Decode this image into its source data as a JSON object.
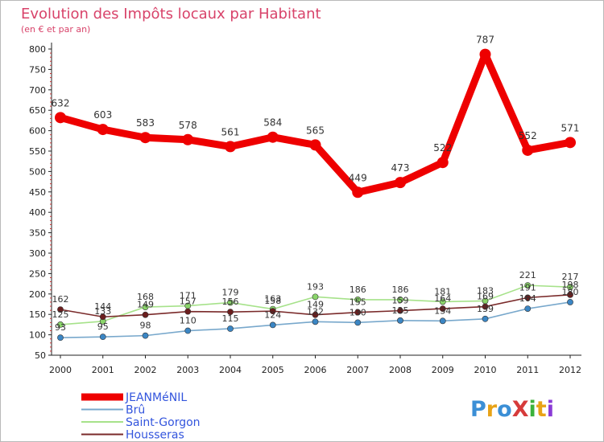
{
  "chart_data": {
    "type": "line",
    "title": "Evolution des Impôts locaux par Habitant",
    "subtitle": "(en € et par an)",
    "xlabel": "",
    "ylabel": "",
    "ylim": [
      50,
      800
    ],
    "yticks": [
      50,
      100,
      150,
      200,
      250,
      300,
      350,
      400,
      450,
      500,
      550,
      600,
      650,
      700,
      750,
      800
    ],
    "categories": [
      "2000",
      "2001",
      "2002",
      "2003",
      "2004",
      "2005",
      "2006",
      "2007",
      "2008",
      "2009",
      "2010",
      "2011",
      "2012"
    ],
    "grid": false,
    "legend_position": "bottom-left",
    "series": [
      {
        "name": "JEANMéNIL",
        "color": "#ee0000",
        "marker": "#ee0000",
        "emphasis": "bold",
        "values": [
          632,
          603,
          583,
          578,
          561,
          584,
          565,
          449,
          473,
          522,
          787,
          552,
          571
        ],
        "labels": [
          "632",
          "603",
          "583",
          "578",
          "561",
          "584",
          "565",
          "449",
          "473",
          "522",
          "787",
          "552",
          "571"
        ]
      },
      {
        "name": "Brû",
        "color": "#78a8cc",
        "marker": "#3b86c4",
        "emphasis": "thin",
        "values": [
          93,
          95,
          98,
          110,
          115,
          124,
          132,
          130,
          135,
          134,
          139,
          164,
          180
        ],
        "labels": [
          "93",
          "95",
          "98",
          "110",
          "115",
          "124",
          "132",
          "130",
          "135",
          "134",
          "139",
          "164",
          "180"
        ]
      },
      {
        "name": "Saint-Gorgon",
        "color": "#a6e28a",
        "marker": "#8ad56a",
        "emphasis": "thin",
        "values": [
          125,
          133,
          168,
          171,
          179,
          163,
          193,
          186,
          186,
          181,
          183,
          221,
          217
        ],
        "labels": [
          "125",
          "133",
          "168",
          "171",
          "179",
          "163",
          "193",
          "186",
          "186",
          "181",
          "183",
          "221",
          "217"
        ]
      },
      {
        "name": "Housseras",
        "color": "#7a2a2a",
        "marker": "#6b1e1e",
        "emphasis": "thin",
        "values": [
          162,
          144,
          149,
          157,
          156,
          158,
          149,
          155,
          159,
          164,
          169,
          191,
          198
        ],
        "labels": [
          "162",
          "144",
          "149",
          "157",
          "156",
          "158",
          "149",
          "155",
          "159",
          "164",
          "169",
          "191",
          "198"
        ]
      }
    ]
  },
  "legend": {
    "items": [
      {
        "label": "JEANMéNIL",
        "color": "#ee0000",
        "text_color": "#3355dd"
      },
      {
        "label": "Brû",
        "color": "#78a8cc",
        "text_color": "#3355dd"
      },
      {
        "label": "Saint-Gorgon",
        "color": "#a6e28a",
        "text_color": "#3355dd"
      },
      {
        "label": "Housseras",
        "color": "#7a2a2a",
        "text_color": "#3355dd"
      }
    ]
  },
  "logo": {
    "text": "ProXiti",
    "colors": [
      "#3b8fd6",
      "#e8a317",
      "#3b8fd6",
      "#d63b3b",
      "#3bb23b",
      "#e8a317",
      "#8a3bd6"
    ]
  }
}
